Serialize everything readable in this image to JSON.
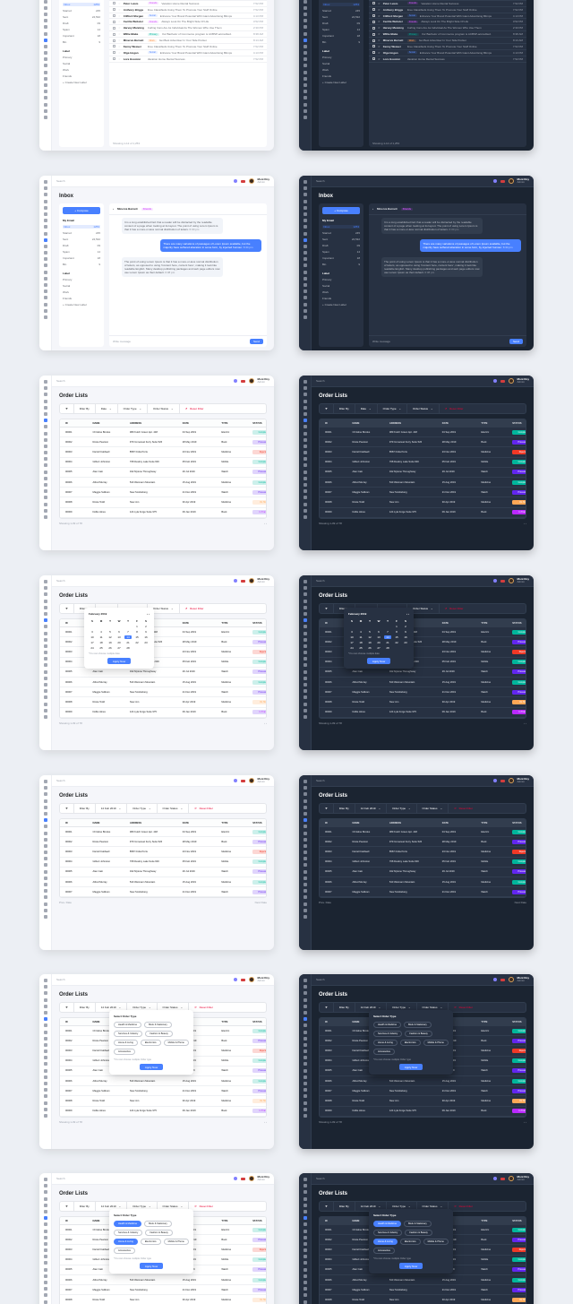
{
  "common": {
    "search_placeholder": "Search",
    "user_name": "Moni Roy",
    "user_role": "Admin"
  },
  "inbox": {
    "title": "Inbox",
    "compose_label": "+ Compose",
    "my_email_label": "My Email",
    "folders": [
      {
        "name": "Inbox",
        "count": "1253"
      },
      {
        "name": "Starred",
        "count": "245"
      },
      {
        "name": "Sent",
        "count": "24,532"
      },
      {
        "name": "Draft",
        "count": "09"
      },
      {
        "name": "Spam",
        "count": "14"
      },
      {
        "name": "Important",
        "count": "18"
      },
      {
        "name": "Bin",
        "count": "9"
      }
    ],
    "label_header": "Label",
    "labels": [
      "Primary",
      "Social",
      "Work",
      "Friends"
    ],
    "create_label": "+ Create New Label",
    "search_mail_placeholder": "Search mail",
    "messages": [
      {
        "name": "Julia Blair",
        "tag": "Primary",
        "tag_color": "#00b69b",
        "subject": "Our Bachelor of Commerce program is ACBSP-accredited.",
        "time": "8:38 AM"
      },
      {
        "name": "Minerva Barnett",
        "tag": "Work",
        "tag_color": "#fd9a56",
        "subject": "Get Best Advertiser In Your Side Pocket",
        "time": "8:13 AM"
      },
      {
        "name": "Peter Lewis",
        "tag": "Friends",
        "tag_color": "#d456fd",
        "subject": "Vacation Home Rental Success",
        "time": "7:52 PM"
      },
      {
        "name": "Anthony Briggs",
        "tag": "",
        "tag_color": "",
        "subject": "Free Classifieds Using Them To Promote Your Stuff Online",
        "time": "7:52 PM"
      },
      {
        "name": "Clifford Morgan",
        "tag": "Social",
        "tag_color": "#5a8cff",
        "subject": "Enhance Your Brand Potential With Giant Advertising Blimps",
        "time": "4:13 PM"
      },
      {
        "name": "Cecilia Webster",
        "tag": "Friends",
        "tag_color": "#d456fd",
        "subject": "Always Look On The Bright Side Of Life",
        "time": "3:52 PM"
      },
      {
        "name": "Harvey Manning",
        "tag": "",
        "tag_color": "",
        "subject": "Curling Irons Are As Individual As The Women Who Use Them",
        "time": "2:30 PM"
      },
      {
        "name": "Willie Blake",
        "tag": "Primary",
        "tag_color": "#00b69b",
        "subject": "Our Bachelor of Commerce program is ACBSP-accredited.",
        "time": "8:38 AM"
      },
      {
        "name": "Minerva Barnett",
        "tag": "Work",
        "tag_color": "#fd9a56",
        "subject": "Get Best Advertiser In Your Side Pocket",
        "time": "8:13 AM"
      },
      {
        "name": "Fanny Weaver",
        "tag": "",
        "tag_color": "",
        "subject": "Free Classifieds Using Them To Promote Your Stuff Online",
        "time": "7:52 PM"
      },
      {
        "name": "Olga Hogan",
        "tag": "Social",
        "tag_color": "#5a8cff",
        "subject": "Enhance Your Brand Potential With Giant Advertising Blimps",
        "time": "4:13 PM"
      },
      {
        "name": "Lora Houston",
        "tag": "",
        "tag_color": "",
        "subject": "Vacation Home Rental Success",
        "time": "7:52 PM"
      }
    ],
    "footer": "Showing 1-12 of 1,253"
  },
  "chat": {
    "contact": "Minerva Barnett",
    "contact_tag": "Friends",
    "bubbles": [
      {
        "dir": "in",
        "text": "It is a long established fact that a reader will be distracted by the readable content of a page when looking at its layout. The point of using Lorem Ipsum is that it has a more-or-less normal distribution of letters.",
        "time": "6:30 pm"
      },
      {
        "dir": "out",
        "text": "There are many variations of passages of Lorem Ipsum available, but the majority have suffered alteration in some form, by injected humour.",
        "time": "6:34 pm"
      },
      {
        "dir": "in",
        "text": "The point of using Lorem Ipsum is that it has a more-or-less normal distribution of letters, as opposed to using 'Content here, content here', making it look like readable English. Many desktop publishing packages and web page editors now use Lorem Ipsum as their default.",
        "time": "6:38 pm"
      }
    ],
    "input_placeholder": "Write message",
    "send_label": "Send"
  },
  "orders": {
    "title": "Order Lists",
    "filter_by": "Filter By",
    "date_label": "Date",
    "date_selected": "14 Feb 2019",
    "order_type_label": "Order Type",
    "order_status_label": "Order Status",
    "reset_label": "Reset Filter",
    "columns": [
      "ID",
      "NAME",
      "ADDRESS",
      "DATE",
      "TYPE",
      "STATUS"
    ],
    "rows": [
      {
        "id": "00001",
        "name": "Christine Brooks",
        "address": "089 Kutch Green Apt. 448",
        "date": "04 Sep 2019",
        "type": "Electric",
        "status": "Completed",
        "sc": "completed"
      },
      {
        "id": "00002",
        "name": "Rosie Pearson",
        "address": "979 Immanuel Ferry Suite 526",
        "date": "28 May 2019",
        "type": "Book",
        "status": "Processing",
        "sc": "processing"
      },
      {
        "id": "00003",
        "name": "Darrell Caldwell",
        "address": "8587 Frida Ports",
        "date": "23 Nov 2019",
        "type": "Medicine",
        "status": "Rejected",
        "sc": "rejected"
      },
      {
        "id": "00004",
        "name": "Gilbert Johnston",
        "address": "768 Destiny Lake Suite 600",
        "date": "05 Feb 2019",
        "type": "Mobile",
        "status": "Completed",
        "sc": "completed"
      },
      {
        "id": "00005",
        "name": "Alan Cain",
        "address": "042 Mylene Throughway",
        "date": "29 Jul 2019",
        "type": "Watch",
        "status": "Processing",
        "sc": "processing"
      },
      {
        "id": "00006",
        "name": "Alfred Murray",
        "address": "543 Weimann Mountain",
        "date": "15 Aug 2019",
        "type": "Medicine",
        "status": "Completed",
        "sc": "completed"
      },
      {
        "id": "00007",
        "name": "Maggie Sullivan",
        "address": "New Scottieberg",
        "date": "21 Dec 2019",
        "type": "Watch",
        "status": "Processing",
        "sc": "processing"
      },
      {
        "id": "00008",
        "name": "Rosie Todd",
        "address": "New Jon",
        "date": "30 Apr 2019",
        "type": "Medicine",
        "status": "On Hold",
        "sc": "on-hold"
      },
      {
        "id": "00009",
        "name": "Dollie Hines",
        "address": "124 Lyla Forge Suite 975",
        "date": "09 Jan 2019",
        "type": "Book",
        "status": "In Transit",
        "sc": "in-transit"
      }
    ],
    "footer": "Showing 1-09 of 78",
    "prev_label": "Prev. Date",
    "next_label": "Next Date"
  },
  "calendar": {
    "month": "February 2019",
    "weekdays": [
      "S",
      "M",
      "T",
      "W",
      "T",
      "F",
      "S"
    ],
    "days": [
      "",
      "",
      "",
      "",
      "",
      "1",
      "2",
      "3",
      "4",
      "5",
      "6",
      "7",
      "8",
      "9",
      "10",
      "11",
      "12",
      "13",
      "14",
      "15",
      "16",
      "17",
      "18",
      "19",
      "20",
      "21",
      "22",
      "23",
      "24",
      "25",
      "26",
      "27",
      "28",
      "",
      ""
    ],
    "selected_day": "14",
    "note": "*You can choose multiple date",
    "apply_label": "Apply Now"
  },
  "type_picker": {
    "title": "Select Order Type",
    "options": [
      "Health & Medicine",
      "Book & Stationary",
      "Services & Industry",
      "Fashion & Beauty",
      "Home & Living",
      "Electronics",
      "Mobile & Phone",
      "Accessories"
    ],
    "note": "*You can choose multiple Order type",
    "apply_label": "Apply Now"
  }
}
